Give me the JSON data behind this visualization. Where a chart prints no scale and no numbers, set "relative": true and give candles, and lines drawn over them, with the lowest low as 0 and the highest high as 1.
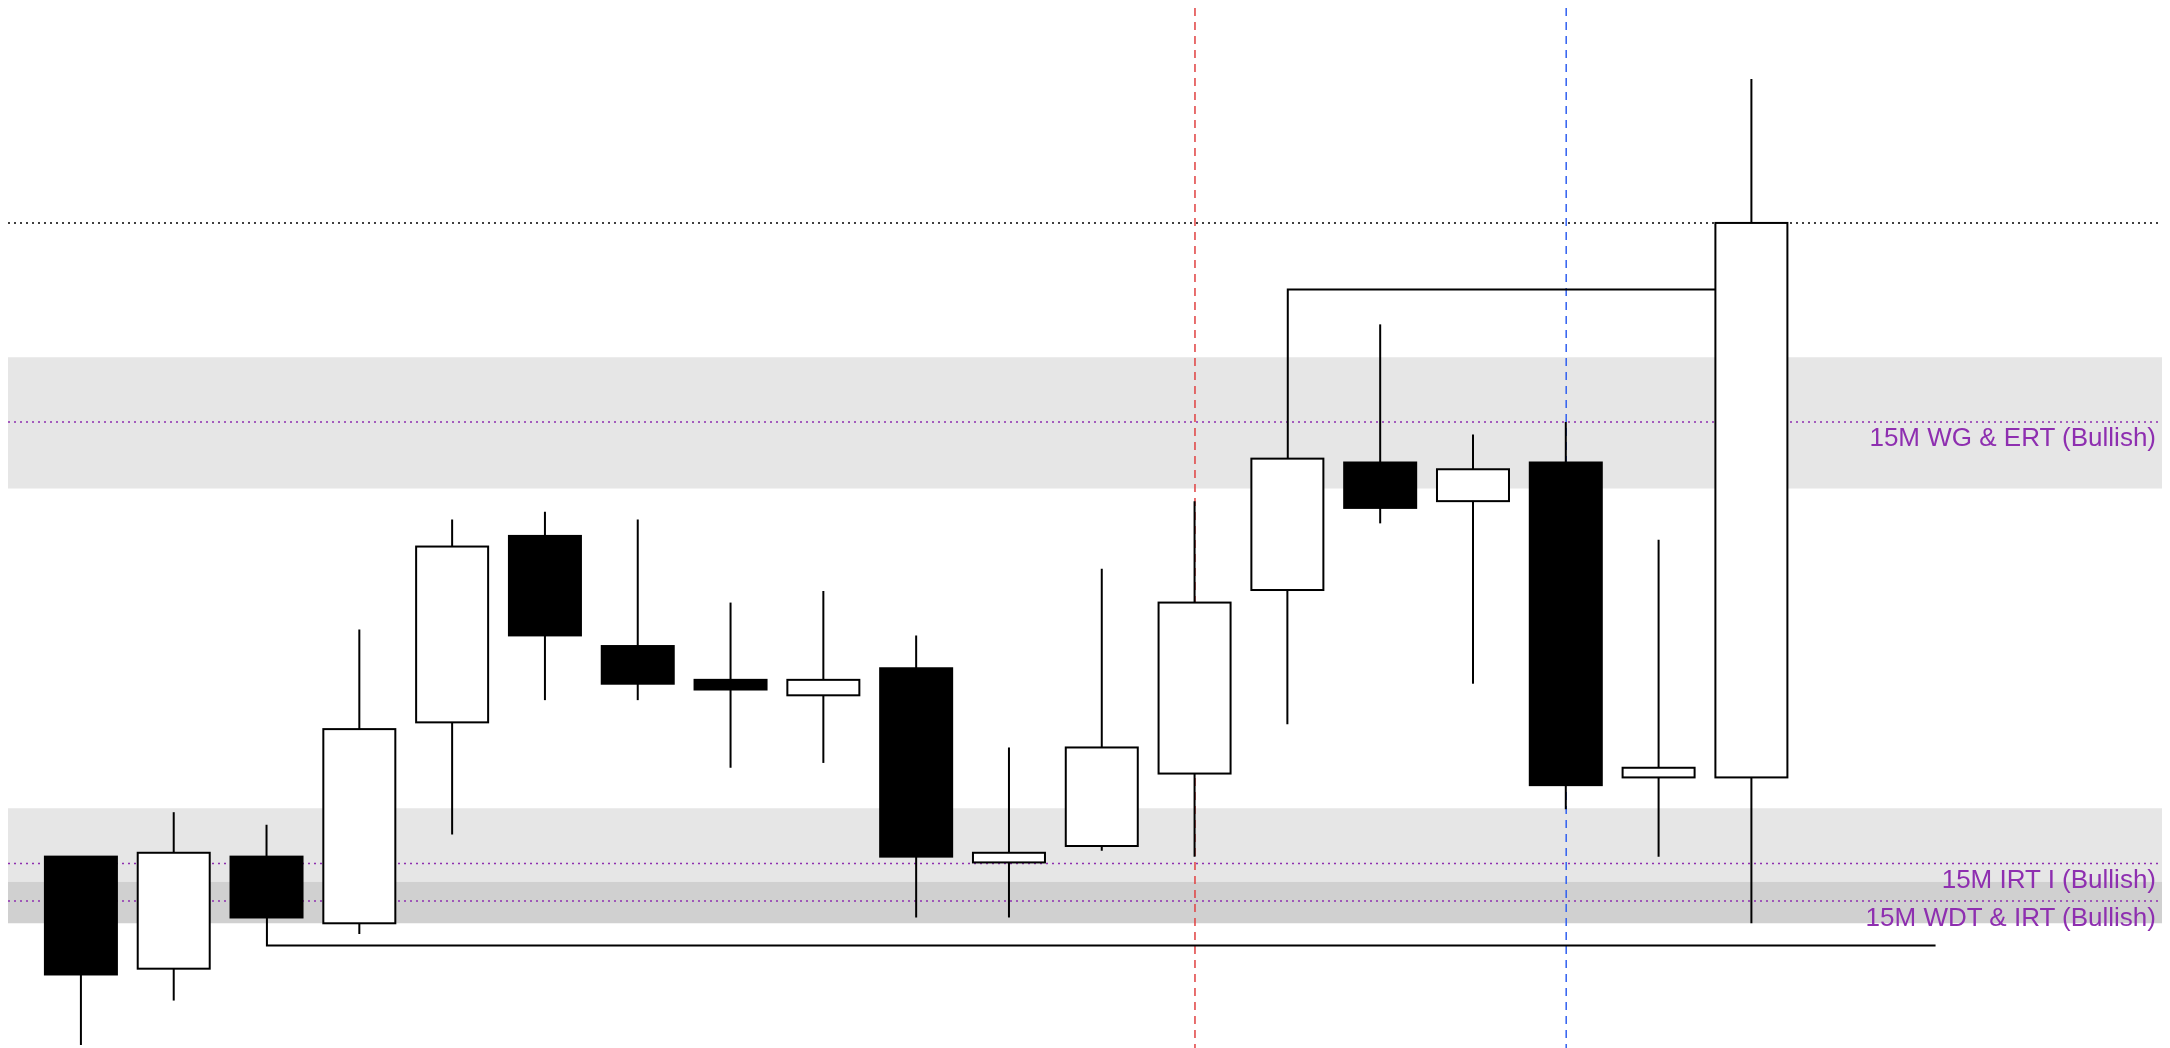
{
  "chart_data": {
    "type": "candlestick",
    "relative": true,
    "tick_labels": false,
    "categories": [
      null,
      null,
      null,
      null,
      null,
      null,
      null,
      null,
      null,
      null,
      null,
      null,
      null,
      null,
      null,
      null,
      null,
      null,
      null
    ],
    "ohlc": [
      [
        0.195,
        0.195,
        0,
        0.073
      ],
      [
        0.079,
        0.241,
        0.046,
        0.199
      ],
      [
        0.195,
        0.228,
        0.132,
        0.132
      ],
      [
        0.126,
        0.43,
        0.115,
        0.327
      ],
      [
        0.334,
        0.544,
        0.218,
        0.516
      ],
      [
        0.527,
        0.552,
        0.357,
        0.424
      ],
      [
        0.413,
        0.544,
        0.357,
        0.374
      ],
      [
        0.378,
        0.458,
        0.287,
        0.368
      ],
      [
        0.362,
        0.47,
        0.292,
        0.378
      ],
      [
        0.39,
        0.424,
        0.132,
        0.195
      ],
      [
        0.189,
        0.308,
        0.132,
        0.199
      ],
      [
        0.206,
        0.493,
        0.201,
        0.308
      ],
      [
        0.281,
        0.563,
        0.195,
        0.458
      ],
      [
        0.471,
        0.607,
        0.332,
        0.607
      ],
      [
        0.603,
        0.746,
        0.54,
        0.556
      ],
      [
        0.563,
        0.632,
        0.374,
        0.596
      ],
      [
        0.603,
        0.645,
        0.244,
        0.269
      ],
      [
        0.277,
        0.523,
        0.195,
        0.287
      ],
      [
        0.277,
        1,
        0.126,
        0.851
      ]
    ],
    "bands": [
      {
        "axis": "y",
        "from": 0.576,
        "to": 0.712,
        "color": "#e6e6e6"
      },
      {
        "axis": "y",
        "from": 0.169,
        "to": 0.245,
        "color": "#e6e6e6"
      },
      {
        "axis": "y",
        "from": 0.126,
        "to": 0.169,
        "color": "#d0d0d0"
      }
    ],
    "ref_lines": [
      {
        "axis": "y",
        "value": 0.851,
        "color": "#000000",
        "line_style": "dotted"
      },
      {
        "axis": "y",
        "value": 0.645,
        "label": "15M WG & ERT (Bullish)",
        "color": "#8e2fb0",
        "line_style": "dotted"
      },
      {
        "axis": "y",
        "value": 0.188,
        "label": "15M IRT I (Bullish)",
        "color": "#8e2fb0",
        "line_style": "dotted"
      },
      {
        "axis": "y",
        "value": 0.149,
        "label": "15M WDT & IRT (Bullish)",
        "color": "#8e2fb0",
        "line_style": "dotted"
      }
    ]
  }
}
